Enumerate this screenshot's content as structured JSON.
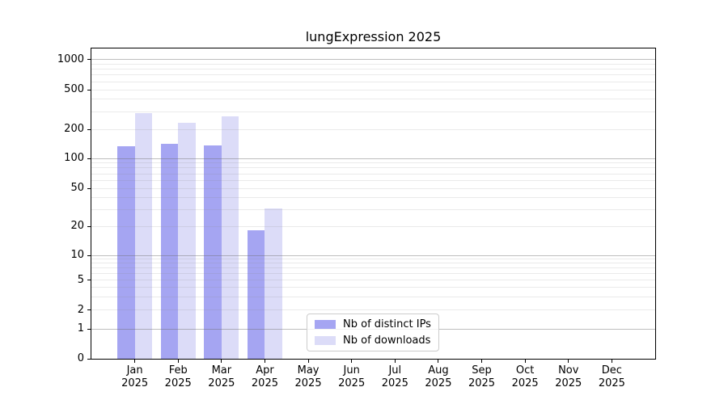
{
  "chart_data": {
    "type": "bar",
    "title": "lungExpression 2025",
    "categories": [
      "Jan",
      "Feb",
      "Mar",
      "Apr",
      "May",
      "Jun",
      "Jul",
      "Aug",
      "Sep",
      "Oct",
      "Nov",
      "Dec"
    ],
    "x_year_label": "2025",
    "series": [
      {
        "name": "Nb of distinct IPs",
        "color": "#a5a5f2",
        "values": [
          134,
          141,
          136,
          18,
          null,
          null,
          null,
          null,
          null,
          null,
          null,
          null
        ]
      },
      {
        "name": "Nb of downloads",
        "color": "#dcdcf8",
        "values": [
          293,
          231,
          270,
          31,
          null,
          null,
          null,
          null,
          null,
          null,
          null,
          null
        ]
      }
    ],
    "y_axis": {
      "scale": "log-like (symlog with 0 baseline)",
      "tick_labels": [
        "0",
        "1",
        "2",
        "5",
        "10",
        "20",
        "50",
        "100",
        "200",
        "500",
        "1000"
      ],
      "ticks": [
        0,
        1,
        2,
        5,
        10,
        20,
        50,
        100,
        200,
        500,
        1000
      ],
      "major_gridline_values": [
        1,
        10,
        100,
        1000
      ],
      "ylim": [
        0,
        1300
      ]
    },
    "xlabel": "",
    "ylabel": "",
    "grid": "on (minor + major horizontal lines, drawn above bars)",
    "legend_position": "lower center-left inside plot"
  },
  "colors": {
    "series_distinct_ips": "#a5a5f2",
    "series_downloads": "#dcdcf8",
    "grid_major": "#c2c2c2",
    "grid_minor": "#ececec",
    "spine": "#000000",
    "legend_border": "#cccccc",
    "background": "#ffffff",
    "text": "#000000"
  }
}
